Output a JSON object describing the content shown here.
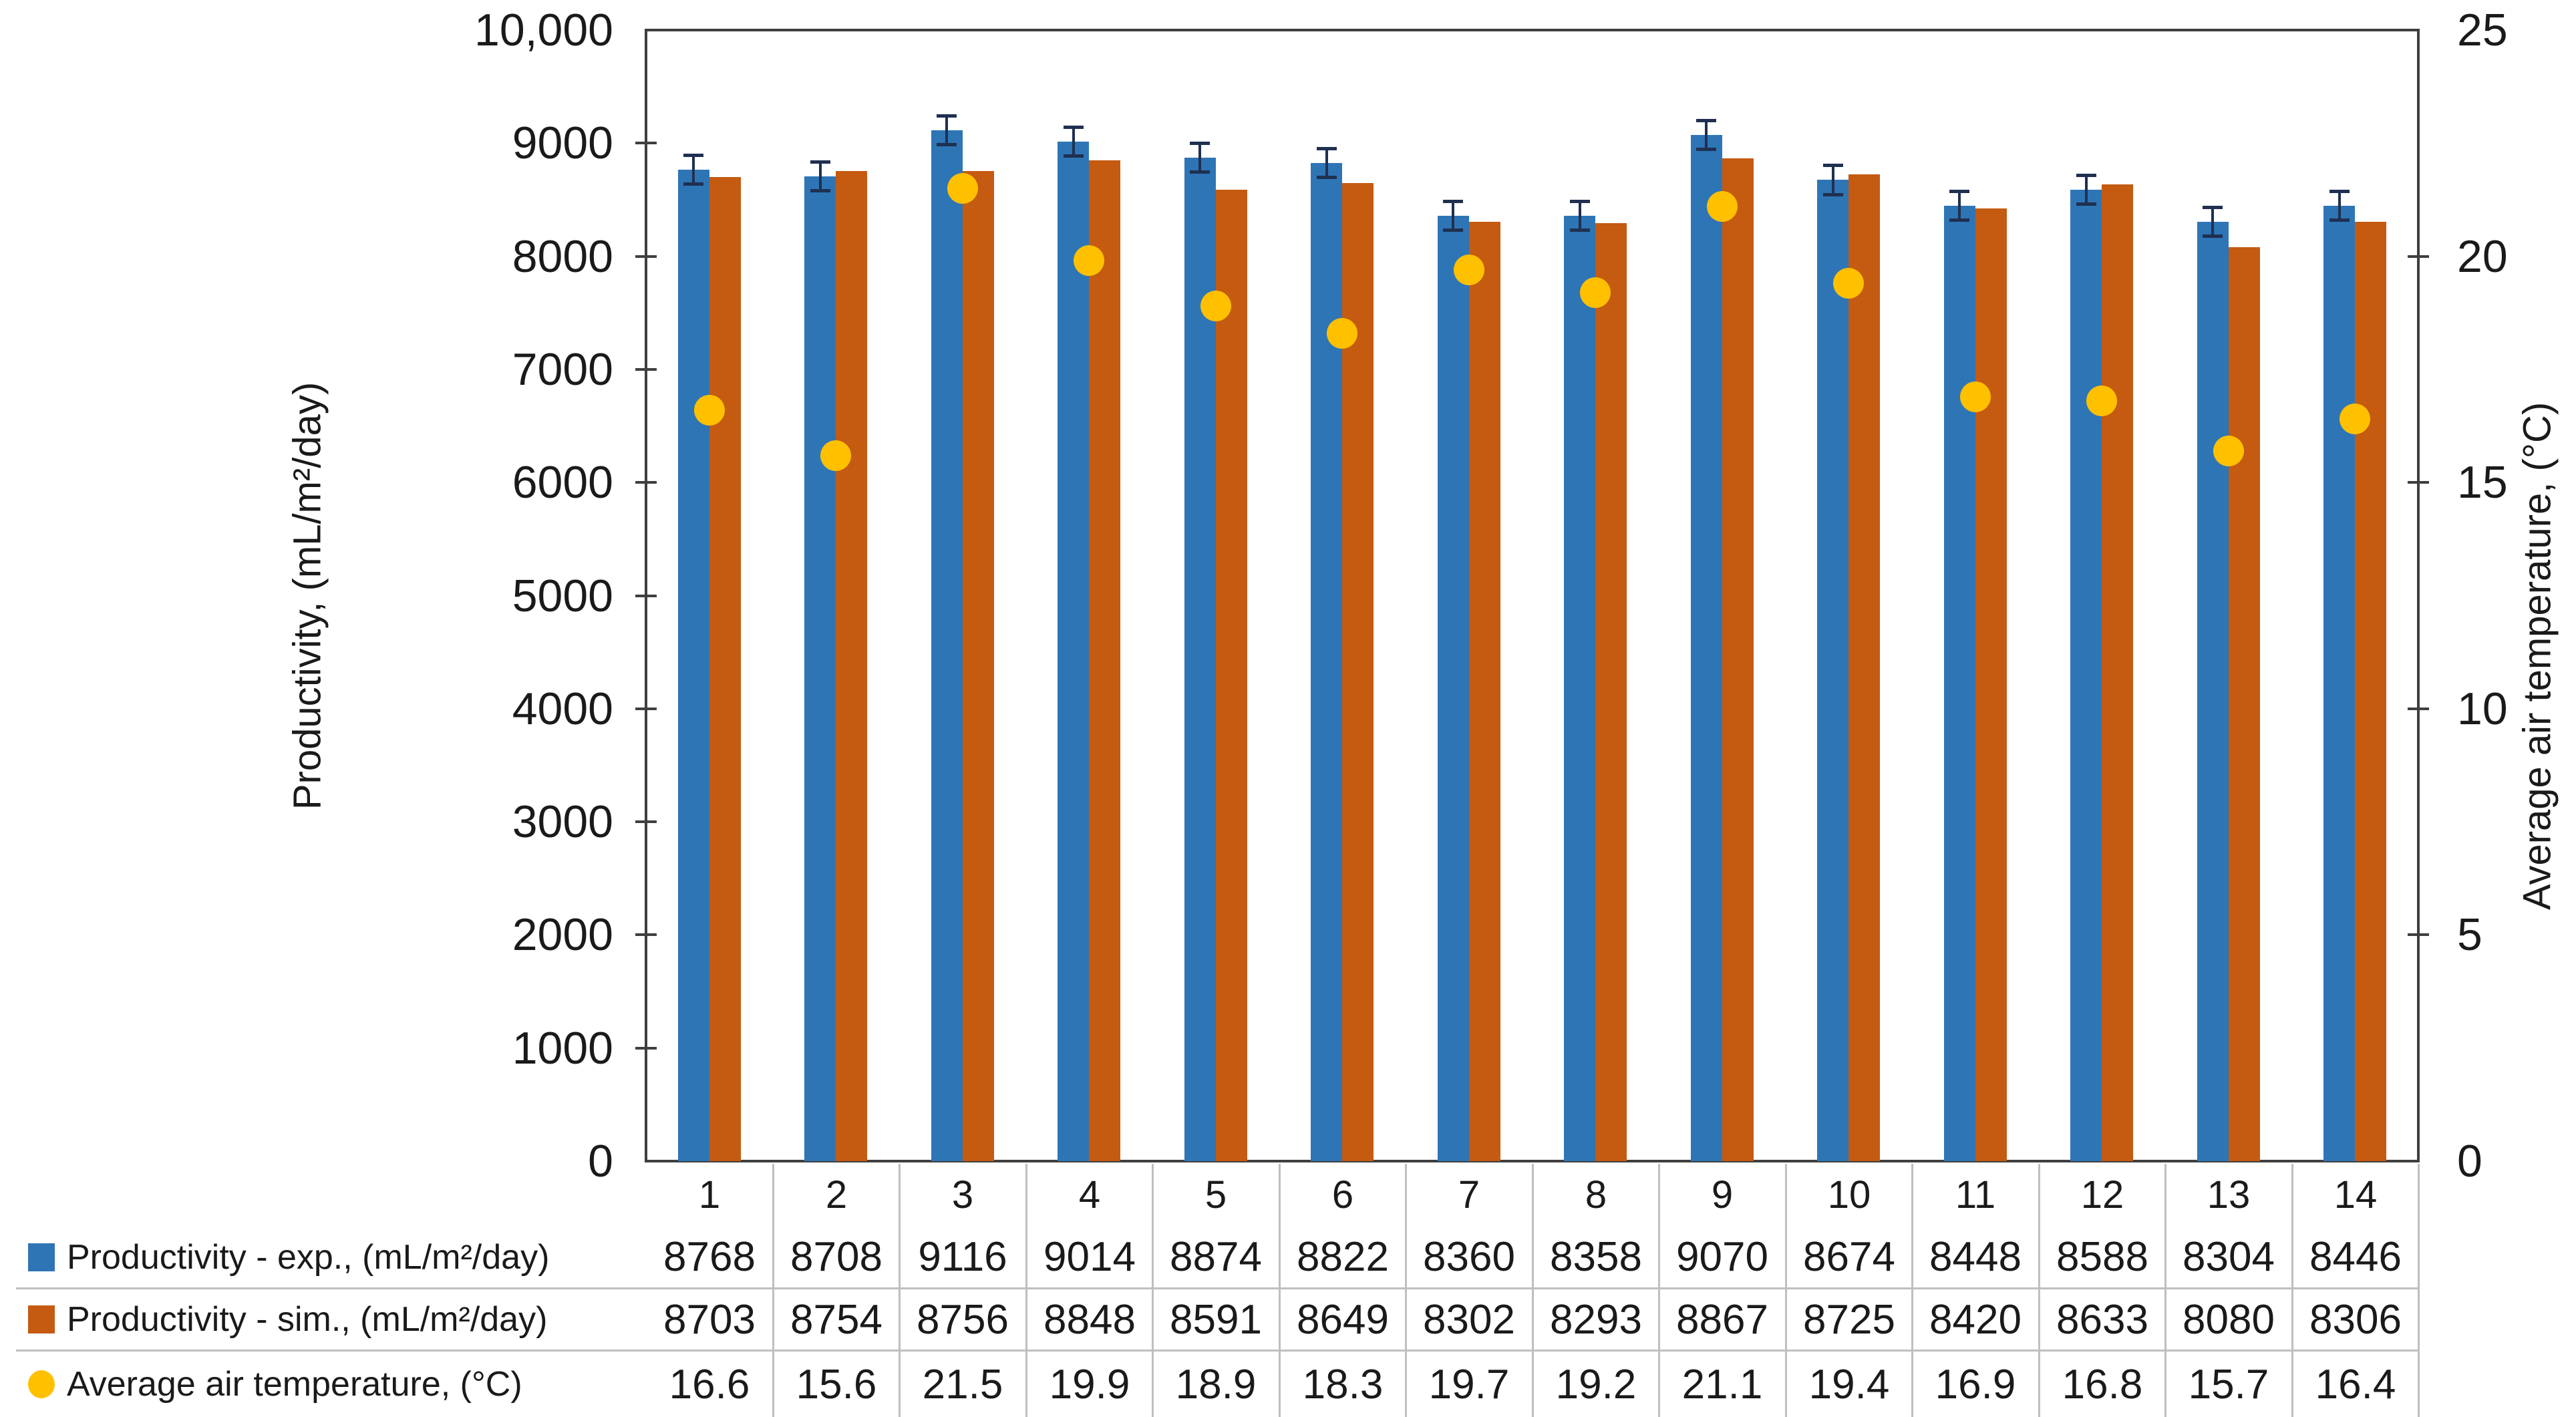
{
  "chart_data": {
    "type": "bar",
    "categories": [
      "1",
      "2",
      "3",
      "4",
      "5",
      "6",
      "7",
      "8",
      "9",
      "10",
      "11",
      "12",
      "13",
      "14"
    ],
    "series": [
      {
        "name": "Productivity - exp., (mL/m²/day)",
        "type": "bar",
        "marker": "square",
        "color": "#2E75B6",
        "axis": "left",
        "error_bar": 130,
        "values": [
          8768,
          8708,
          9116,
          9014,
          8874,
          8822,
          8360,
          8358,
          9070,
          8674,
          8448,
          8588,
          8304,
          8446
        ]
      },
      {
        "name": "Productivity - sim., (mL/m²/day)",
        "type": "bar",
        "marker": "square",
        "color": "#C55A11",
        "axis": "left",
        "values": [
          8703,
          8754,
          8756,
          8848,
          8591,
          8649,
          8302,
          8293,
          8867,
          8725,
          8420,
          8633,
          8080,
          8306
        ]
      },
      {
        "name": "Average air temperature, (°C)",
        "type": "scatter",
        "marker": "circle",
        "color": "#FFC000",
        "axis": "right",
        "decimals": 1,
        "values": [
          16.6,
          15.6,
          21.5,
          19.9,
          18.9,
          18.3,
          19.7,
          19.2,
          21.1,
          19.4,
          16.9,
          16.8,
          15.7,
          16.4
        ]
      }
    ],
    "left_axis": {
      "label": "Productivity, (mL/m²/day)",
      "min": 0,
      "max": 10000,
      "step": 1000,
      "tick_labels": [
        "0",
        "1000",
        "2000",
        "3000",
        "4000",
        "5000",
        "6000",
        "7000",
        "8000",
        "9000",
        "10,000"
      ]
    },
    "right_axis": {
      "label": "Average air temperature, (°C)",
      "min": 0,
      "max": 25,
      "step": 5,
      "tick_labels": [
        "0",
        "5",
        "10",
        "15",
        "20",
        "25"
      ]
    },
    "gridlines": false,
    "legend_position": "data-table-left",
    "colors": {
      "axis_line": "#3F3F3F",
      "table_line": "#BFBFBF",
      "error_bar": "#1F3050",
      "text": "#1A1A1A",
      "background": "#FFFFFF"
    }
  }
}
